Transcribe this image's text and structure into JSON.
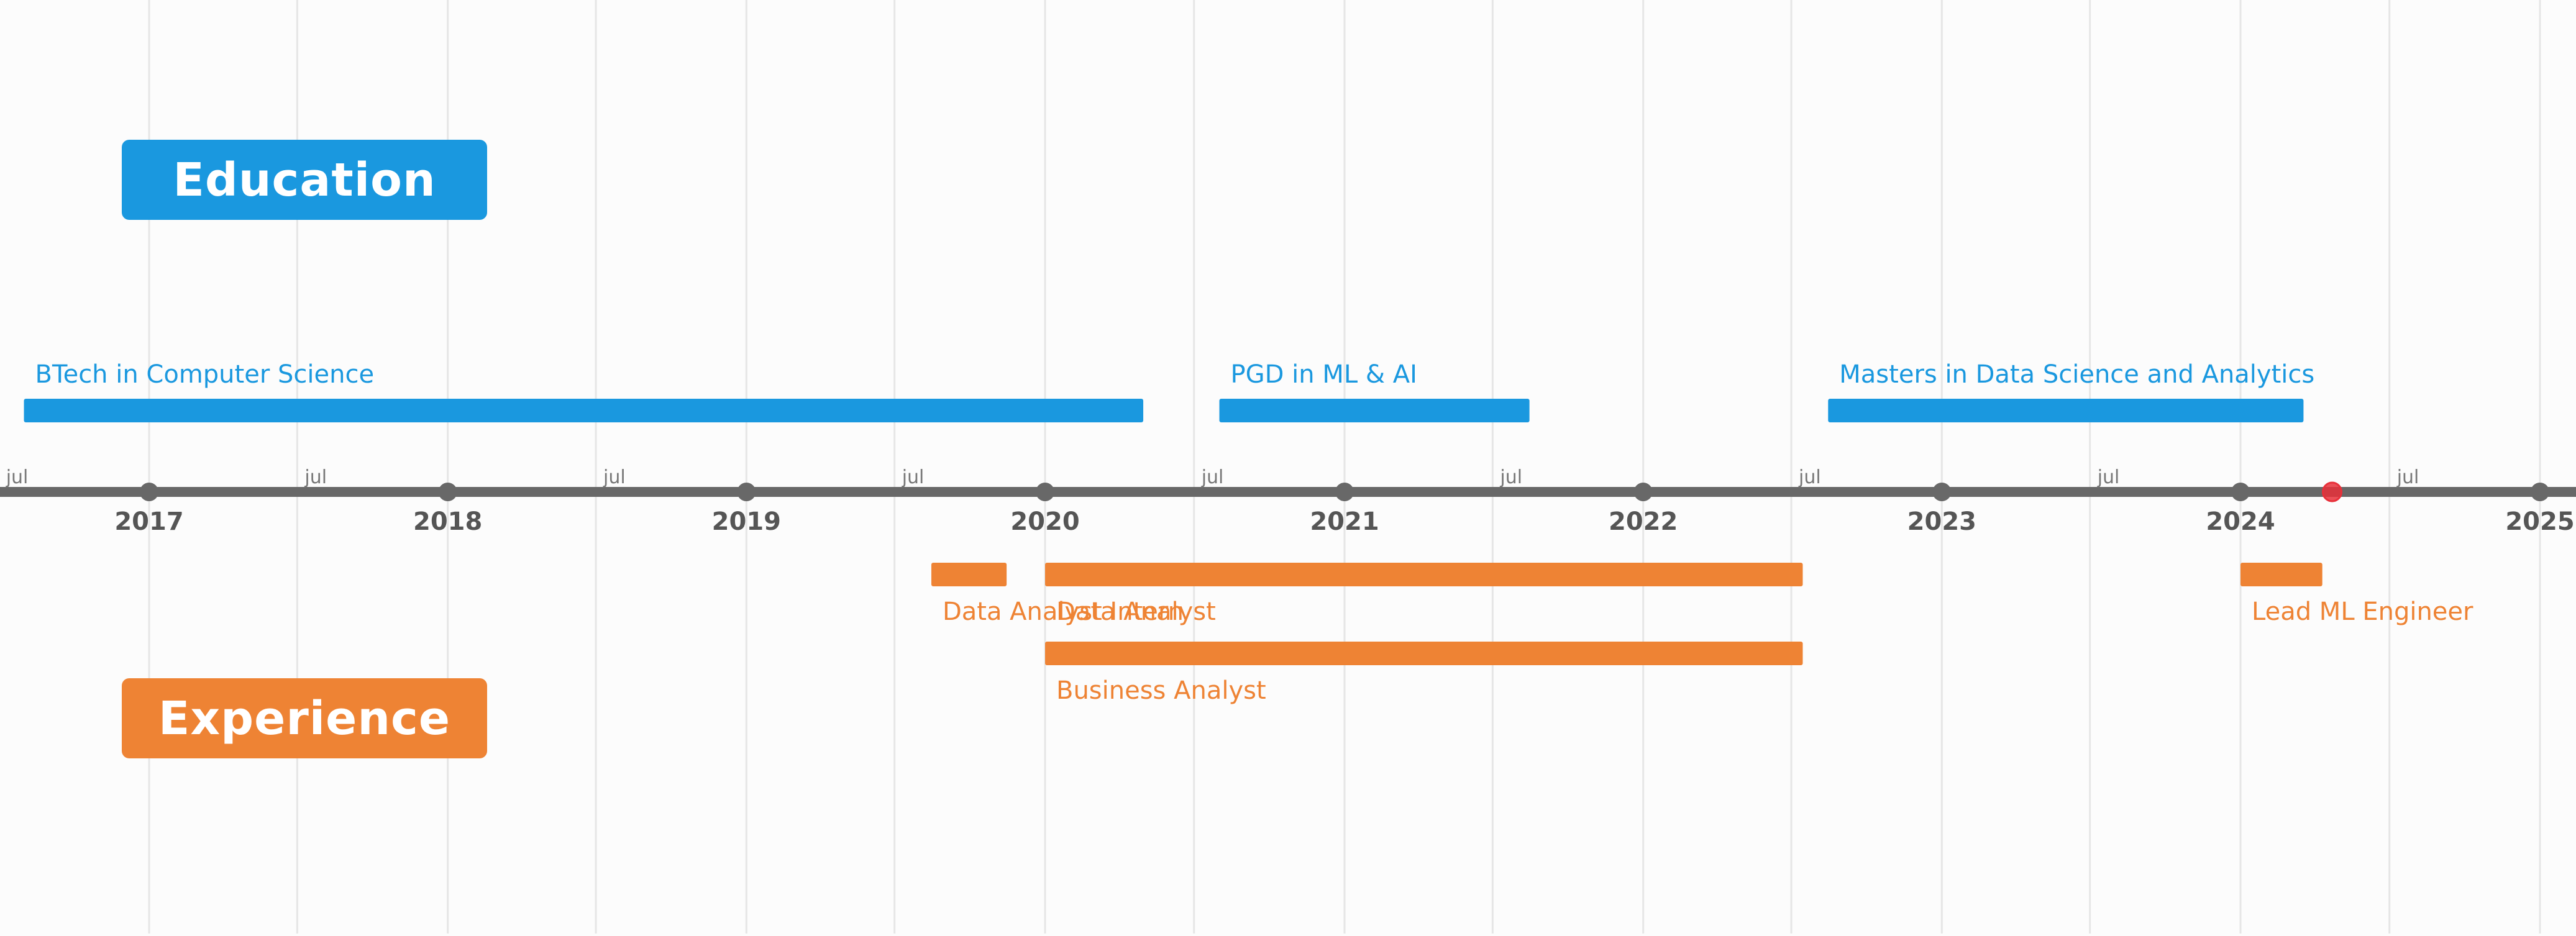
{
  "colors": {
    "education": "#1a98df",
    "experience": "#ee8334",
    "axis": "#686868",
    "grid": "#e6e6e6",
    "today": "#e8303a"
  },
  "headers": {
    "education": "Education",
    "experience": "Experience"
  },
  "chart_data": {
    "type": "timeline",
    "x_range": [
      "2016-07-01",
      "2025-01-01"
    ],
    "year_ticks": [
      "2017",
      "2018",
      "2019",
      "2020",
      "2021",
      "2022",
      "2023",
      "2024",
      "2025"
    ],
    "mid_tick_label": "jul",
    "mid_ticks": [
      "2016-07-01",
      "2017-07-01",
      "2018-07-01",
      "2019-07-01",
      "2020-07-01",
      "2021-07-01",
      "2022-07-01",
      "2023-07-01",
      "2024-07-01"
    ],
    "today_marker": "2024-04-22",
    "grid": true,
    "education": [
      {
        "label": "BTech in Computer Science",
        "start": "2016-08-01",
        "end": "2020-04-30"
      },
      {
        "label": "PGD in ML & AI",
        "start": "2020-08-01",
        "end": "2021-08-15"
      },
      {
        "label": "Masters in Data Science and Analytics",
        "start": "2022-08-15",
        "end": "2024-03-18"
      }
    ],
    "experience": [
      {
        "label": "Data Analyst Intern",
        "start": "2019-08-15",
        "end": "2019-11-15"
      },
      {
        "label": "Data Analyst",
        "start": "2020-01-01",
        "end": "2022-07-15"
      },
      {
        "label": "Business Analyst",
        "start": "2020-01-01",
        "end": "2022-07-15"
      },
      {
        "label": "Lead ML Engineer",
        "start": "2024-01-01",
        "end": "2024-04-10"
      }
    ]
  }
}
